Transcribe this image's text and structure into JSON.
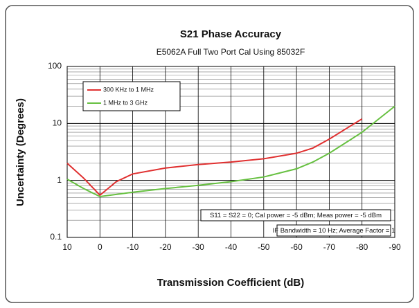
{
  "chart_data": {
    "type": "line",
    "title": "S21 Phase Accuracy",
    "subtitle": "E5062A Full Two Port Cal Using 85032F",
    "x_label": "Transmission Coefficient (dB)",
    "y_label": "Uncertainty (Degrees)",
    "xlim": [
      10,
      -90
    ],
    "xticks": [
      10,
      0,
      -10,
      -20,
      -30,
      -40,
      -50,
      -60,
      -70,
      -80,
      -90
    ],
    "ylim": [
      0.1,
      100
    ],
    "yticks": [
      0.1,
      1,
      10,
      100
    ],
    "log_y": true,
    "grid": true,
    "minor_grid": true,
    "legend": "upper left",
    "series": [
      {
        "name": "300 KHz to 1 MHz",
        "color": "#e03030",
        "x": [
          10,
          5,
          0,
          -5,
          -10,
          -20,
          -30,
          -40,
          -50,
          -60,
          -65,
          -70,
          -75,
          -80
        ],
        "values": [
          2.0,
          1.1,
          0.55,
          0.95,
          1.3,
          1.65,
          1.9,
          2.1,
          2.4,
          3.0,
          3.7,
          5.3,
          8.0,
          12
        ]
      },
      {
        "name": "1 MHz to 3 GHz",
        "color": "#66c040",
        "x": [
          10,
          5,
          0,
          -10,
          -20,
          -30,
          -40,
          -50,
          -60,
          -65,
          -70,
          -80,
          -90
        ],
        "values": [
          1.05,
          0.72,
          0.52,
          0.62,
          0.72,
          0.82,
          0.95,
          1.15,
          1.6,
          2.1,
          3.0,
          7.0,
          20
        ]
      }
    ],
    "annotations": [
      "S11 = S22 = 0; Cal power = -5 dBm; Meas power = -5 dBm",
      "IF Bandwidth = 10 Hz; Average Factor = 1"
    ]
  }
}
